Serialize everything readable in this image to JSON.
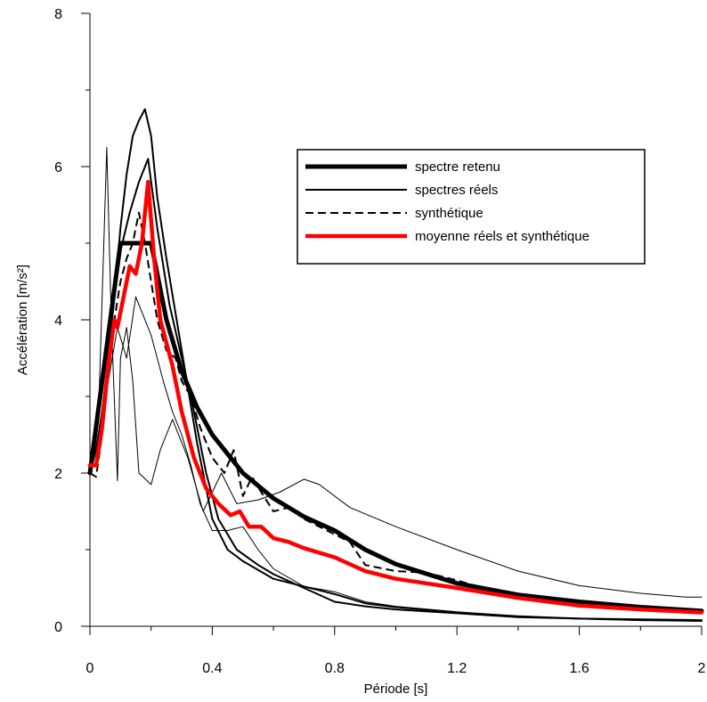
{
  "chart_data": {
    "type": "line",
    "title": "",
    "xlabel": "Période [s]",
    "ylabel": "Accélération [m/s²]",
    "xlim": [
      0,
      2
    ],
    "ylim": [
      0,
      8
    ],
    "xticks": [
      0,
      0.4,
      0.8,
      1.2,
      1.6,
      2
    ],
    "xtick_labels": [
      "0",
      "0.4",
      "0.8",
      "1.2",
      "1.6",
      "2"
    ],
    "yticks": [
      0,
      2,
      4,
      6,
      8
    ],
    "ytick_labels": [
      "0",
      "2",
      "4",
      "6",
      "8"
    ],
    "grid": false,
    "legend_position": "top-right",
    "series": [
      {
        "name": "spectre retenu",
        "color": "#000000",
        "width": 5,
        "dash": "",
        "points": [
          [
            0,
            2
          ],
          [
            0.1,
            5
          ],
          [
            0.2,
            5
          ],
          [
            0.25,
            4
          ],
          [
            0.3,
            3.33
          ],
          [
            0.35,
            2.86
          ],
          [
            0.4,
            2.5
          ],
          [
            0.5,
            2
          ],
          [
            0.6,
            1.67
          ],
          [
            0.7,
            1.43
          ],
          [
            0.8,
            1.25
          ],
          [
            0.9,
            1.0
          ],
          [
            1.0,
            0.81
          ],
          [
            1.2,
            0.56
          ],
          [
            1.4,
            0.41
          ],
          [
            1.6,
            0.32
          ],
          [
            1.8,
            0.25
          ],
          [
            2,
            0.2
          ]
        ]
      },
      {
        "name": "spectres réels",
        "color": "#000000",
        "width": 2,
        "dash": "",
        "points": [
          [
            0,
            2
          ],
          [
            0.02,
            2.3
          ],
          [
            0.04,
            2.8
          ],
          [
            0.06,
            3.5
          ],
          [
            0.08,
            4.3
          ],
          [
            0.1,
            5.2
          ],
          [
            0.12,
            5.9
          ],
          [
            0.14,
            6.4
          ],
          [
            0.16,
            6.6
          ],
          [
            0.18,
            6.75
          ],
          [
            0.2,
            6.4
          ],
          [
            0.22,
            5.6
          ],
          [
            0.25,
            4.8
          ],
          [
            0.3,
            3.6
          ],
          [
            0.35,
            2.4
          ],
          [
            0.4,
            1.4
          ],
          [
            0.45,
            1.0
          ],
          [
            0.5,
            0.85
          ],
          [
            0.6,
            0.62
          ],
          [
            0.7,
            0.52
          ],
          [
            0.8,
            0.42
          ],
          [
            0.9,
            0.3
          ],
          [
            1.0,
            0.25
          ],
          [
            1.2,
            0.18
          ],
          [
            1.4,
            0.13
          ],
          [
            1.6,
            0.1
          ],
          [
            1.8,
            0.08
          ],
          [
            2,
            0.07
          ]
        ]
      },
      {
        "name": "",
        "color": "#000000",
        "width": 2,
        "dash": "",
        "points": [
          [
            0,
            2
          ],
          [
            0.03,
            2.8
          ],
          [
            0.05,
            3.6
          ],
          [
            0.08,
            4.4
          ],
          [
            0.1,
            4.9
          ],
          [
            0.13,
            5.4
          ],
          [
            0.16,
            5.8
          ],
          [
            0.19,
            6.1
          ],
          [
            0.22,
            5.2
          ],
          [
            0.26,
            4.2
          ],
          [
            0.3,
            3.5
          ],
          [
            0.33,
            3.0
          ],
          [
            0.38,
            2.0
          ],
          [
            0.42,
            1.4
          ],
          [
            0.48,
            1.0
          ],
          [
            0.55,
            0.8
          ],
          [
            0.6,
            0.68
          ],
          [
            0.7,
            0.5
          ],
          [
            0.8,
            0.32
          ],
          [
            0.9,
            0.26
          ],
          [
            1.0,
            0.22
          ],
          [
            1.2,
            0.17
          ],
          [
            1.4,
            0.12
          ],
          [
            1.6,
            0.1
          ],
          [
            2,
            0.08
          ]
        ]
      },
      {
        "name": "",
        "color": "#000000",
        "width": 1,
        "dash": "",
        "points": [
          [
            0,
            2
          ],
          [
            0.03,
            3.0
          ],
          [
            0.055,
            6.25
          ],
          [
            0.07,
            4.0
          ],
          [
            0.09,
            1.9
          ],
          [
            0.1,
            3.5
          ],
          [
            0.12,
            3.9
          ],
          [
            0.14,
            3.2
          ],
          [
            0.16,
            2.0
          ],
          [
            0.2,
            1.85
          ],
          [
            0.23,
            2.3
          ],
          [
            0.27,
            2.7
          ],
          [
            0.32,
            2.2
          ],
          [
            0.37,
            1.5
          ],
          [
            0.43,
            2.0
          ],
          [
            0.48,
            1.6
          ],
          [
            0.55,
            1.65
          ],
          [
            0.62,
            1.75
          ],
          [
            0.7,
            1.92
          ],
          [
            0.75,
            1.85
          ],
          [
            0.85,
            1.55
          ],
          [
            1.0,
            1.3
          ],
          [
            1.2,
            1.0
          ],
          [
            1.4,
            0.72
          ],
          [
            1.6,
            0.53
          ],
          [
            1.8,
            0.43
          ],
          [
            1.95,
            0.38
          ],
          [
            2,
            0.38
          ]
        ]
      },
      {
        "name": "",
        "color": "#000000",
        "width": 1,
        "dash": "",
        "points": [
          [
            0,
            2
          ],
          [
            0.03,
            2.5
          ],
          [
            0.06,
            3.2
          ],
          [
            0.09,
            3.9
          ],
          [
            0.12,
            3.5
          ],
          [
            0.15,
            4.3
          ],
          [
            0.2,
            3.8
          ],
          [
            0.24,
            3.2
          ],
          [
            0.27,
            2.8
          ],
          [
            0.3,
            2.5
          ],
          [
            0.33,
            2.1
          ],
          [
            0.36,
            1.6
          ],
          [
            0.4,
            1.25
          ],
          [
            0.45,
            1.25
          ],
          [
            0.5,
            1.3
          ],
          [
            0.55,
            1.0
          ],
          [
            0.6,
            0.75
          ],
          [
            0.7,
            0.52
          ],
          [
            0.8,
            0.45
          ],
          [
            0.9,
            0.32
          ],
          [
            1.0,
            0.26
          ],
          [
            1.2,
            0.19
          ],
          [
            1.4,
            0.13
          ],
          [
            1.6,
            0.1
          ],
          [
            2,
            0.07
          ]
        ]
      },
      {
        "name": "synthétique",
        "color": "#000000",
        "width": 2,
        "dash": "9,5",
        "points": [
          [
            0,
            2
          ],
          [
            0.02,
            1.95
          ],
          [
            0.04,
            2.5
          ],
          [
            0.06,
            3.4
          ],
          [
            0.08,
            4.0
          ],
          [
            0.1,
            4.5
          ],
          [
            0.12,
            4.8
          ],
          [
            0.14,
            5.0
          ],
          [
            0.16,
            5.4
          ],
          [
            0.18,
            5.0
          ],
          [
            0.2,
            4.5
          ],
          [
            0.22,
            4.0
          ],
          [
            0.25,
            3.6
          ],
          [
            0.28,
            3.5
          ],
          [
            0.3,
            3.2
          ],
          [
            0.33,
            3.0
          ],
          [
            0.36,
            2.6
          ],
          [
            0.4,
            2.2
          ],
          [
            0.44,
            2.0
          ],
          [
            0.47,
            2.3
          ],
          [
            0.5,
            1.7
          ],
          [
            0.53,
            1.95
          ],
          [
            0.56,
            1.75
          ],
          [
            0.6,
            1.5
          ],
          [
            0.65,
            1.55
          ],
          [
            0.7,
            1.4
          ],
          [
            0.75,
            1.3
          ],
          [
            0.8,
            1.2
          ],
          [
            0.85,
            1.1
          ],
          [
            0.9,
            0.8
          ],
          [
            1.0,
            0.72
          ],
          [
            1.1,
            0.7
          ],
          [
            1.2,
            0.6
          ],
          [
            1.3,
            0.48
          ],
          [
            1.4,
            0.38
          ],
          [
            1.6,
            0.3
          ],
          [
            1.8,
            0.24
          ],
          [
            2,
            0.2
          ]
        ]
      },
      {
        "name": "moyenne réels et synthétique",
        "color": "#ff0000",
        "width": 4.5,
        "dash": "",
        "points": [
          [
            0,
            2.1
          ],
          [
            0.02,
            2.1
          ],
          [
            0.04,
            2.6
          ],
          [
            0.06,
            3.4
          ],
          [
            0.08,
            4.0
          ],
          [
            0.09,
            3.9
          ],
          [
            0.11,
            4.3
          ],
          [
            0.13,
            4.7
          ],
          [
            0.15,
            4.6
          ],
          [
            0.17,
            5.0
          ],
          [
            0.19,
            5.8
          ],
          [
            0.21,
            4.8
          ],
          [
            0.23,
            4.0
          ],
          [
            0.27,
            3.4
          ],
          [
            0.3,
            2.8
          ],
          [
            0.34,
            2.2
          ],
          [
            0.38,
            1.8
          ],
          [
            0.42,
            1.6
          ],
          [
            0.46,
            1.45
          ],
          [
            0.49,
            1.5
          ],
          [
            0.52,
            1.3
          ],
          [
            0.56,
            1.3
          ],
          [
            0.6,
            1.15
          ],
          [
            0.65,
            1.1
          ],
          [
            0.7,
            1.02
          ],
          [
            0.8,
            0.9
          ],
          [
            0.9,
            0.72
          ],
          [
            1.0,
            0.62
          ],
          [
            1.2,
            0.5
          ],
          [
            1.4,
            0.37
          ],
          [
            1.6,
            0.27
          ],
          [
            1.8,
            0.22
          ],
          [
            2,
            0.18
          ]
        ]
      }
    ]
  }
}
